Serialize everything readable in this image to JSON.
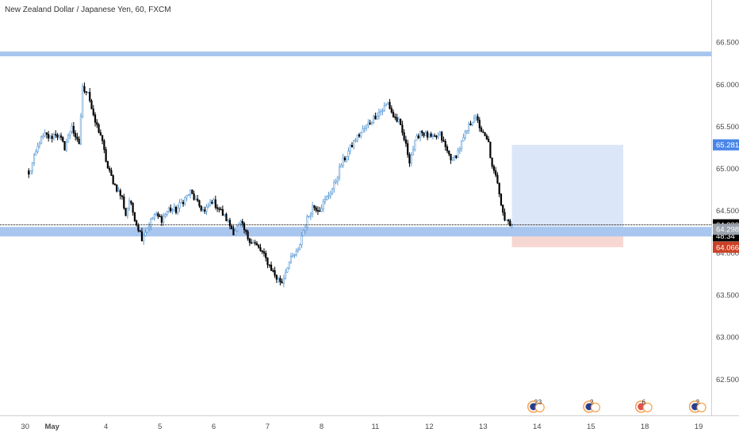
{
  "header": {
    "title": "New Zealand Dollar / Japanese Yen, 60, FXCM"
  },
  "colors": {
    "bull": "#ffffff",
    "bear": "#000000",
    "wick_bull": "#5b9bd5",
    "wick_bear": "#000000",
    "zone_line": "#a9c6ef",
    "target_zone": "#dbe7f8",
    "stop_zone": "#f7d7d2",
    "price_badge": "#000000",
    "target_badge": "#4a86e8",
    "zone_badge": "#9aa3ad",
    "stop_badge": "#cc4125"
  },
  "chart_data": {
    "type": "candlestick",
    "symbol": "New Zealand Dollar / Japanese Yen, 60, FXCM",
    "y_ticks": [
      "66.500",
      "66.000",
      "65.500",
      "65.000",
      "64.500",
      "64.000",
      "63.500",
      "63.000",
      "62.500"
    ],
    "y_tick_values": [
      66.5,
      66.0,
      65.5,
      65.0,
      64.5,
      64.0,
      63.5,
      63.0,
      62.5
    ],
    "ylim": [
      62.07,
      67.0
    ],
    "x_ticks": [
      "30",
      "May",
      "4",
      "5",
      "6",
      "7",
      "8",
      "11",
      "12",
      "13",
      "14",
      "15",
      "18",
      "19"
    ],
    "x_tick_index": [
      -2,
      13,
      43,
      73,
      103,
      133,
      163,
      193,
      223,
      253,
      283,
      313,
      343,
      373
    ],
    "x_view": [
      -16,
      380
    ],
    "close_path": [
      [
        0,
        64.92
      ],
      [
        3,
        65.12
      ],
      [
        6,
        65.32
      ],
      [
        9,
        65.4
      ],
      [
        12,
        65.36
      ],
      [
        15,
        65.42
      ],
      [
        18,
        65.34
      ],
      [
        20,
        65.25
      ],
      [
        22,
        65.38
      ],
      [
        24,
        65.52
      ],
      [
        26,
        65.34
      ],
      [
        28,
        65.3
      ],
      [
        30,
        65.95
      ],
      [
        33,
        65.92
      ],
      [
        36,
        65.6
      ],
      [
        40,
        65.4
      ],
      [
        44,
        65.0
      ],
      [
        48,
        64.8
      ],
      [
        52,
        64.65
      ],
      [
        54,
        64.45
      ],
      [
        56,
        64.62
      ],
      [
        60,
        64.35
      ],
      [
        63,
        64.18
      ],
      [
        66,
        64.3
      ],
      [
        70,
        64.45
      ],
      [
        74,
        64.4
      ],
      [
        78,
        64.52
      ],
      [
        82,
        64.5
      ],
      [
        86,
        64.62
      ],
      [
        90,
        64.72
      ],
      [
        94,
        64.58
      ],
      [
        98,
        64.48
      ],
      [
        102,
        64.62
      ],
      [
        106,
        64.52
      ],
      [
        110,
        64.4
      ],
      [
        114,
        64.25
      ],
      [
        118,
        64.35
      ],
      [
        122,
        64.18
      ],
      [
        126,
        64.1
      ],
      [
        130,
        64.0
      ],
      [
        134,
        63.85
      ],
      [
        138,
        63.7
      ],
      [
        141,
        63.65
      ],
      [
        144,
        63.85
      ],
      [
        147,
        63.95
      ],
      [
        150,
        64.02
      ],
      [
        152,
        64.2
      ],
      [
        155,
        64.4
      ],
      [
        158,
        64.55
      ],
      [
        162,
        64.52
      ],
      [
        166,
        64.65
      ],
      [
        170,
        64.8
      ],
      [
        174,
        65.05
      ],
      [
        178,
        65.2
      ],
      [
        182,
        65.35
      ],
      [
        186,
        65.45
      ],
      [
        190,
        65.55
      ],
      [
        194,
        65.65
      ],
      [
        197,
        65.7
      ],
      [
        200,
        65.78
      ],
      [
        203,
        65.62
      ],
      [
        206,
        65.55
      ],
      [
        209,
        65.35
      ],
      [
        212,
        65.1
      ],
      [
        215,
        65.3
      ],
      [
        218,
        65.45
      ],
      [
        221,
        65.4
      ],
      [
        225,
        65.35
      ],
      [
        229,
        65.4
      ],
      [
        233,
        65.2
      ],
      [
        236,
        65.1
      ],
      [
        239,
        65.2
      ],
      [
        242,
        65.35
      ],
      [
        245,
        65.5
      ],
      [
        248,
        65.62
      ],
      [
        250,
        65.55
      ],
      [
        253,
        65.4
      ],
      [
        256,
        65.3
      ],
      [
        258,
        65.0
      ],
      [
        261,
        64.85
      ],
      [
        263,
        64.6
      ],
      [
        265,
        64.4
      ],
      [
        267,
        64.38
      ],
      [
        269,
        64.332
      ]
    ],
    "current_price": "64.332",
    "countdown": "48:34",
    "levels": {
      "resistance": "66.360",
      "support": "64.250",
      "target": "65.281",
      "entry": "64.298",
      "stop": "64.066"
    },
    "position_tool": {
      "start_index": 269,
      "end_index": 331,
      "entry": 64.298,
      "target": 65.281,
      "stop": 64.066
    },
    "events": [
      {
        "index": 281,
        "count_a": "2",
        "count_b": "3"
      },
      {
        "index": 312,
        "count_a": "2",
        "count_b": ""
      },
      {
        "index": 341,
        "count_a": "6",
        "count_b": ""
      },
      {
        "index": 371,
        "count_a": "2",
        "count_b": ""
      }
    ]
  }
}
